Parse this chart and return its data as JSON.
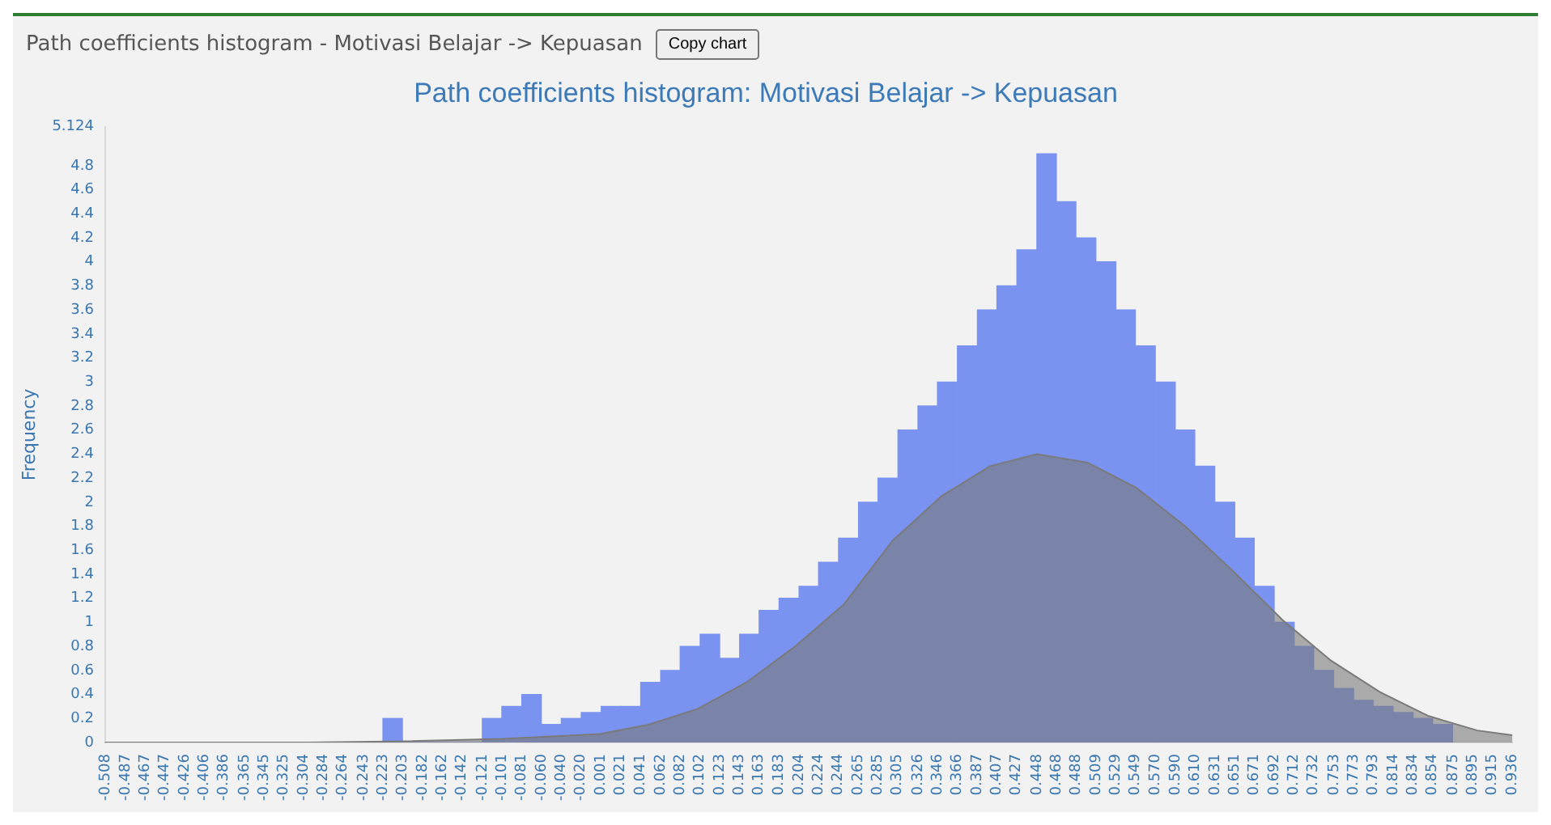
{
  "chart_data": {
    "type": "histogram",
    "title": "Path coefficients histogram: Motivasi Belajar -> Kepuasan",
    "ylabel": "Frequency",
    "annotations": [
      "Path coefficients histogram - Motivasi Belajar -> Kepuasan",
      "Copy chart"
    ],
    "bins": [
      -0.223,
      -0.203,
      -0.182,
      -0.162,
      -0.142,
      -0.121,
      -0.101,
      -0.081,
      -0.06,
      -0.04,
      -0.02,
      0.001,
      0.021,
      0.041,
      0.062,
      0.082,
      0.102,
      0.123,
      0.143,
      0.163,
      0.183,
      0.204,
      0.224,
      0.244,
      0.265,
      0.285,
      0.305,
      0.326,
      0.346,
      0.366,
      0.387,
      0.407,
      0.427,
      0.448,
      0.468,
      0.488,
      0.509,
      0.529,
      0.549,
      0.57,
      0.59,
      0.61,
      0.631,
      0.651,
      0.671,
      0.692,
      0.712,
      0.732,
      0.753,
      0.773,
      0.793,
      0.814,
      0.834,
      0.854,
      0.875
    ],
    "series": [
      {
        "color": "#7b93f0",
        "values": [
          0.2,
          0,
          0,
          0,
          0,
          0.2,
          0.3,
          0.4,
          0.15,
          0.2,
          0.25,
          0.3,
          0.3,
          0.5,
          0.6,
          0.8,
          0.9,
          0.7,
          0.9,
          1.1,
          1.2,
          1.3,
          1.5,
          1.7,
          2.0,
          2.2,
          2.6,
          2.8,
          3.0,
          3.3,
          3.6,
          3.8,
          4.1,
          4.9,
          4.5,
          4.2,
          4.0,
          3.6,
          3.3,
          3.0,
          2.6,
          2.3,
          2.0,
          1.7,
          1.3,
          1.0,
          0.8,
          0.6,
          0.45,
          0.35,
          0.3,
          0.25,
          0.2,
          0.15
        ]
      },
      {
        "type": "area",
        "color": "#7a7a7a",
        "x": [
          -0.508,
          -0.3,
          -0.2,
          -0.1,
          0.0,
          0.05,
          0.1,
          0.15,
          0.2,
          0.25,
          0.3,
          0.35,
          0.4,
          0.448,
          0.5,
          0.55,
          0.6,
          0.65,
          0.7,
          0.75,
          0.8,
          0.85,
          0.9,
          0.936
        ],
        "values": [
          0.0,
          0.0,
          0.01,
          0.03,
          0.07,
          0.15,
          0.28,
          0.5,
          0.8,
          1.15,
          1.68,
          2.05,
          2.3,
          2.4,
          2.33,
          2.12,
          1.8,
          1.42,
          1.02,
          0.68,
          0.42,
          0.22,
          0.1,
          0.06
        ]
      }
    ],
    "xlim": [
      -0.508,
      0.936
    ],
    "xticks": [
      -0.508,
      -0.487,
      -0.467,
      -0.447,
      -0.426,
      -0.406,
      -0.386,
      -0.365,
      -0.345,
      -0.325,
      -0.304,
      -0.284,
      -0.264,
      -0.243,
      -0.223,
      -0.203,
      -0.182,
      -0.162,
      -0.142,
      -0.121,
      -0.101,
      -0.081,
      {
        "value": -0.06,
        "label": "-0.060"
      },
      {
        "value": -0.04,
        "label": "-0.040"
      },
      {
        "value": -0.02,
        "label": "-0.020"
      },
      0.001,
      0.021,
      0.041,
      0.062,
      0.082,
      0.102,
      0.123,
      0.143,
      0.163,
      0.183,
      0.204,
      0.224,
      0.244,
      0.265,
      0.285,
      0.305,
      0.326,
      0.346,
      0.366,
      0.387,
      0.407,
      0.427,
      0.448,
      0.468,
      0.488,
      0.509,
      0.529,
      0.549,
      {
        "value": 0.57,
        "label": "0.570"
      },
      {
        "value": 0.59,
        "label": "0.590"
      },
      {
        "value": 0.61,
        "label": "0.610"
      },
      0.631,
      0.651,
      0.671,
      0.692,
      0.712,
      0.732,
      0.753,
      0.773,
      0.793,
      0.814,
      0.834,
      0.854,
      0.875,
      0.895,
      0.915,
      0.936
    ],
    "ylim": [
      0,
      5.124
    ],
    "yticks": [
      0,
      0.2,
      0.4,
      0.6,
      0.8,
      1,
      1.2,
      1.4,
      1.6,
      1.8,
      2,
      2.2,
      2.4,
      2.6,
      2.8,
      3,
      3.2,
      3.4,
      3.6,
      3.8,
      4,
      4.2,
      4.4,
      4.6,
      4.8,
      5.124
    ],
    "grid": false,
    "legend": false
  }
}
